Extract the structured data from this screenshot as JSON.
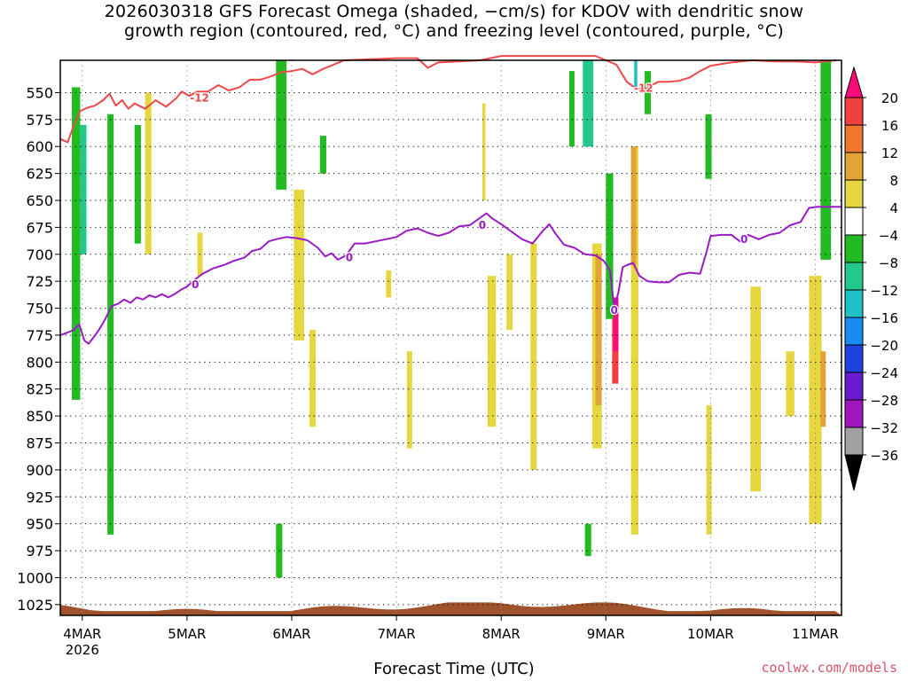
{
  "title_line1": "2026030318 GFS Forecast Omega (shaded, −cm/s) for KDOV with dendritic snow",
  "title_line2": "growth region (contoured, red, °C) and freezing level (contoured, purple, °C)",
  "x_label": "Forecast Time (UTC)",
  "credit": "coolwx.com/models",
  "chart_data": {
    "type": "heatmap",
    "title": "2026030318 GFS Forecast Omega (shaded, −cm/s) for KDOV with dendritic snow growth region (contoured, red, °C) and freezing level (contoured, purple, °C)",
    "xlabel": "Forecast Time (UTC)",
    "ylabel": "",
    "x_range": [
      3.79,
      11.25
    ],
    "y_range": [
      1035,
      520
    ],
    "y_ticks": [
      550,
      575,
      600,
      625,
      650,
      675,
      700,
      725,
      750,
      775,
      800,
      825,
      850,
      875,
      900,
      925,
      950,
      975,
      1000,
      1025
    ],
    "x_ticks": [
      {
        "t": 4,
        "label": "4MAR",
        "sub": "2026"
      },
      {
        "t": 5,
        "label": "5MAR",
        "sub": ""
      },
      {
        "t": 6,
        "label": "6MAR",
        "sub": ""
      },
      {
        "t": 7,
        "label": "7MAR",
        "sub": ""
      },
      {
        "t": 8,
        "label": "8MAR",
        "sub": ""
      },
      {
        "t": 9,
        "label": "9MAR",
        "sub": ""
      },
      {
        "t": 10,
        "label": "10MAR",
        "sub": ""
      },
      {
        "t": 11,
        "label": "11MAR",
        "sub": ""
      }
    ],
    "grid": true,
    "colorbar": {
      "labels": [
        "20",
        "16",
        "12",
        "8",
        "4",
        "−4",
        "−8",
        "−12",
        "−16",
        "−20",
        "−24",
        "−28",
        "−32",
        "−36"
      ],
      "colors": [
        "#ff0a7a",
        "#f04040",
        "#f07830",
        "#e2a436",
        "#e6d640",
        "#ffffff",
        "#22bb22",
        "#22c88c",
        "#20c0c8",
        "#1a8cf0",
        "#2040e0",
        "#6a1ad0",
        "#a016c0",
        "#a0a0a0"
      ]
    },
    "series": [
      {
        "name": "-12",
        "color": "#f04848",
        "points": [
          [
            3.79,
            593
          ],
          [
            3.86,
            596
          ],
          [
            3.92,
            580
          ],
          [
            3.98,
            567
          ],
          [
            4.05,
            564
          ],
          [
            4.12,
            562
          ],
          [
            4.2,
            557
          ],
          [
            4.26,
            551
          ],
          [
            4.32,
            562
          ],
          [
            4.38,
            557
          ],
          [
            4.44,
            565
          ],
          [
            4.5,
            560
          ],
          [
            4.6,
            565
          ],
          [
            4.7,
            557
          ],
          [
            4.8,
            563
          ],
          [
            4.9,
            555
          ],
          [
            4.95,
            549
          ],
          [
            5.02,
            553
          ],
          [
            5.1,
            549
          ],
          [
            5.2,
            549
          ],
          [
            5.3,
            543
          ],
          [
            5.4,
            548
          ],
          [
            5.5,
            545
          ],
          [
            5.6,
            538
          ],
          [
            5.7,
            538
          ],
          [
            5.8,
            535
          ],
          [
            5.9,
            531
          ],
          [
            6.0,
            530
          ],
          [
            6.1,
            528
          ],
          [
            6.2,
            533
          ],
          [
            6.3,
            528
          ],
          [
            6.4,
            524
          ],
          [
            6.5,
            520
          ],
          [
            7.0,
            518
          ],
          [
            7.2,
            518
          ],
          [
            7.3,
            527
          ],
          [
            7.4,
            522
          ],
          [
            7.6,
            521
          ],
          [
            7.8,
            520
          ],
          [
            8.0,
            516
          ],
          [
            8.5,
            516
          ],
          [
            8.9,
            516
          ],
          [
            9.0,
            520
          ],
          [
            9.1,
            524
          ],
          [
            9.2,
            540
          ],
          [
            9.3,
            547
          ],
          [
            9.4,
            545
          ],
          [
            9.5,
            540
          ],
          [
            9.6,
            540
          ],
          [
            9.7,
            539
          ],
          [
            9.8,
            536
          ],
          [
            9.9,
            530
          ],
          [
            10.0,
            525
          ],
          [
            10.2,
            522
          ],
          [
            10.4,
            520
          ],
          [
            10.6,
            521
          ],
          [
            10.8,
            521
          ],
          [
            11.0,
            522
          ],
          [
            11.2,
            520
          ]
        ],
        "labels": [
          {
            "x": 5.12,
            "y": 555,
            "text": "-12"
          },
          {
            "x": 9.36,
            "y": 546,
            "text": "-12"
          }
        ]
      },
      {
        "name": "0",
        "color": "#9a1ac6",
        "points": [
          [
            3.79,
            775
          ],
          [
            3.85,
            773
          ],
          [
            3.92,
            770
          ],
          [
            3.97,
            765
          ],
          [
            4.02,
            780
          ],
          [
            4.06,
            783
          ],
          [
            4.1,
            778
          ],
          [
            4.16,
            770
          ],
          [
            4.22,
            760
          ],
          [
            4.28,
            748
          ],
          [
            4.34,
            746
          ],
          [
            4.4,
            742
          ],
          [
            4.46,
            745
          ],
          [
            4.52,
            740
          ],
          [
            4.58,
            742
          ],
          [
            4.64,
            738
          ],
          [
            4.7,
            740
          ],
          [
            4.76,
            737
          ],
          [
            4.82,
            740
          ],
          [
            4.88,
            737
          ],
          [
            4.94,
            733
          ],
          [
            5.0,
            730
          ],
          [
            5.08,
            723
          ],
          [
            5.15,
            718
          ],
          [
            5.25,
            713
          ],
          [
            5.35,
            710
          ],
          [
            5.45,
            706
          ],
          [
            5.55,
            703
          ],
          [
            5.62,
            697
          ],
          [
            5.7,
            695
          ],
          [
            5.78,
            688
          ],
          [
            5.85,
            686
          ],
          [
            5.95,
            684
          ],
          [
            6.05,
            685
          ],
          [
            6.15,
            687
          ],
          [
            6.25,
            694
          ],
          [
            6.32,
            702
          ],
          [
            6.38,
            699
          ],
          [
            6.44,
            705
          ],
          [
            6.52,
            701
          ],
          [
            6.6,
            690
          ],
          [
            6.7,
            690
          ],
          [
            6.8,
            688
          ],
          [
            6.9,
            686
          ],
          [
            7.0,
            684
          ],
          [
            7.1,
            678
          ],
          [
            7.2,
            676
          ],
          [
            7.3,
            680
          ],
          [
            7.4,
            683
          ],
          [
            7.5,
            680
          ],
          [
            7.6,
            674
          ],
          [
            7.7,
            673
          ],
          [
            7.8,
            666
          ],
          [
            7.86,
            662
          ],
          [
            7.92,
            667
          ],
          [
            8.0,
            672
          ],
          [
            8.1,
            679
          ],
          [
            8.2,
            686
          ],
          [
            8.3,
            690
          ],
          [
            8.4,
            678
          ],
          [
            8.46,
            672
          ],
          [
            8.52,
            681
          ],
          [
            8.6,
            691
          ],
          [
            8.7,
            694
          ],
          [
            8.8,
            700
          ],
          [
            8.9,
            701
          ],
          [
            8.98,
            706
          ],
          [
            9.04,
            715
          ],
          [
            9.08,
            750
          ],
          [
            9.12,
            735
          ],
          [
            9.16,
            712
          ],
          [
            9.2,
            710
          ],
          [
            9.26,
            708
          ],
          [
            9.32,
            720
          ],
          [
            9.4,
            725
          ],
          [
            9.5,
            726
          ],
          [
            9.6,
            726
          ],
          [
            9.7,
            719
          ],
          [
            9.8,
            717
          ],
          [
            9.9,
            718
          ],
          [
            9.96,
            698
          ],
          [
            10.0,
            683
          ],
          [
            10.1,
            682
          ],
          [
            10.2,
            682
          ],
          [
            10.28,
            688
          ],
          [
            10.36,
            682
          ],
          [
            10.46,
            686
          ],
          [
            10.56,
            682
          ],
          [
            10.66,
            680
          ],
          [
            10.76,
            673
          ],
          [
            10.86,
            670
          ],
          [
            10.94,
            657
          ],
          [
            11.02,
            656
          ],
          [
            11.12,
            656
          ],
          [
            11.25,
            656
          ]
        ],
        "labels": [
          {
            "x": 5.08,
            "y": 728,
            "text": "0"
          },
          {
            "x": 6.55,
            "y": 703,
            "text": "0"
          },
          {
            "x": 7.82,
            "y": 673,
            "text": "0"
          },
          {
            "x": 9.08,
            "y": 752,
            "text": "0"
          },
          {
            "x": 10.32,
            "y": 686,
            "text": "0"
          }
        ]
      }
    ],
    "shaded": [
      {
        "x": 3.9,
        "w": 0.08,
        "p1": 545,
        "p2": 835,
        "level": "-8"
      },
      {
        "x": 4.24,
        "w": 0.06,
        "p1": 570,
        "p2": 960,
        "level": "-8"
      },
      {
        "x": 4.5,
        "w": 0.06,
        "p1": 580,
        "p2": 690,
        "level": "-8"
      },
      {
        "x": 5.85,
        "w": 0.1,
        "p1": 520,
        "p2": 640,
        "level": "-8"
      },
      {
        "x": 6.27,
        "w": 0.06,
        "p1": 590,
        "p2": 625,
        "level": "-8"
      },
      {
        "x": 5.85,
        "w": 0.06,
        "p1": 950,
        "p2": 1000,
        "level": "-8"
      },
      {
        "x": 8.65,
        "w": 0.05,
        "p1": 530,
        "p2": 600,
        "level": "-8"
      },
      {
        "x": 8.8,
        "w": 0.06,
        "p1": 950,
        "p2": 980,
        "level": "-8"
      },
      {
        "x": 9.0,
        "w": 0.07,
        "p1": 625,
        "p2": 760,
        "level": "-8"
      },
      {
        "x": 9.37,
        "w": 0.06,
        "p1": 530,
        "p2": 570,
        "level": "-8"
      },
      {
        "x": 9.95,
        "w": 0.06,
        "p1": 570,
        "p2": 630,
        "level": "-8"
      },
      {
        "x": 11.05,
        "w": 0.1,
        "p1": 520,
        "p2": 705,
        "level": "-8"
      },
      {
        "x": 3.98,
        "w": 0.06,
        "p1": 580,
        "p2": 700,
        "level": "-12"
      },
      {
        "x": 8.78,
        "w": 0.1,
        "p1": 520,
        "p2": 600,
        "level": "-12"
      },
      {
        "x": 9.27,
        "w": 0.03,
        "p1": 520,
        "p2": 545,
        "level": "-16"
      },
      {
        "x": 4.6,
        "w": 0.06,
        "p1": 550,
        "p2": 700,
        "level": "4"
      },
      {
        "x": 5.1,
        "w": 0.05,
        "p1": 680,
        "p2": 720,
        "level": "4"
      },
      {
        "x": 6.02,
        "w": 0.1,
        "p1": 640,
        "p2": 780,
        "level": "4"
      },
      {
        "x": 6.17,
        "w": 0.06,
        "p1": 770,
        "p2": 860,
        "level": "4"
      },
      {
        "x": 6.9,
        "w": 0.05,
        "p1": 715,
        "p2": 740,
        "level": "4"
      },
      {
        "x": 7.1,
        "w": 0.05,
        "p1": 790,
        "p2": 880,
        "level": "4"
      },
      {
        "x": 7.87,
        "w": 0.08,
        "p1": 720,
        "p2": 860,
        "level": "4"
      },
      {
        "x": 7.82,
        "w": 0.03,
        "p1": 560,
        "p2": 650,
        "level": "4"
      },
      {
        "x": 8.05,
        "w": 0.06,
        "p1": 700,
        "p2": 770,
        "level": "4"
      },
      {
        "x": 8.28,
        "w": 0.06,
        "p1": 690,
        "p2": 900,
        "level": "4"
      },
      {
        "x": 8.87,
        "w": 0.09,
        "p1": 690,
        "p2": 880,
        "level": "4"
      },
      {
        "x": 9.24,
        "w": 0.07,
        "p1": 600,
        "p2": 960,
        "level": "4"
      },
      {
        "x": 9.96,
        "w": 0.05,
        "p1": 840,
        "p2": 960,
        "level": "4"
      },
      {
        "x": 10.38,
        "w": 0.1,
        "p1": 730,
        "p2": 920,
        "level": "4"
      },
      {
        "x": 10.72,
        "w": 0.08,
        "p1": 790,
        "p2": 850,
        "level": "4"
      },
      {
        "x": 10.94,
        "w": 0.12,
        "p1": 720,
        "p2": 950,
        "level": "4"
      },
      {
        "x": 8.9,
        "w": 0.06,
        "p1": 700,
        "p2": 840,
        "level": "8"
      },
      {
        "x": 9.24,
        "w": 0.05,
        "p1": 600,
        "p2": 710,
        "level": "8"
      },
      {
        "x": 11.05,
        "w": 0.05,
        "p1": 790,
        "p2": 860,
        "level": "8"
      },
      {
        "x": 9.06,
        "w": 0.06,
        "p1": 760,
        "p2": 820,
        "level": "16"
      },
      {
        "x": 9.07,
        "w": 0.05,
        "p1": 740,
        "p2": 790,
        "level": "20"
      }
    ]
  }
}
